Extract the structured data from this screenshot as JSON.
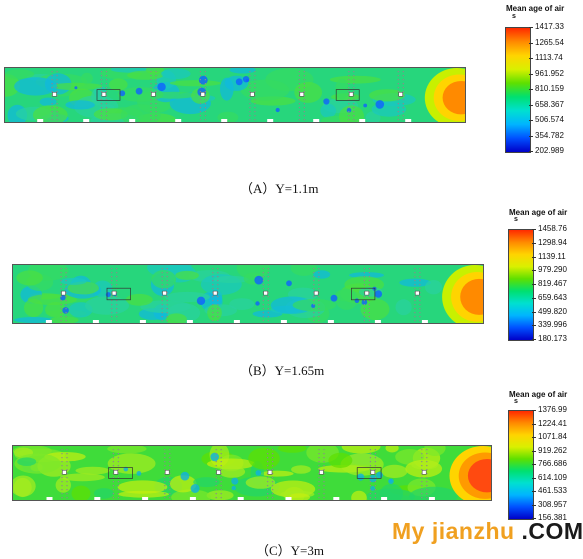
{
  "panels": [
    {
      "caption": "（A）Y=1.1m",
      "legend_title": "Mean age of air",
      "legend_unit": "s",
      "ticks": [
        "1417.33",
        "1265.54",
        "1113.74",
        "961.952",
        "810.159",
        "658.367",
        "506.574",
        "354.782",
        "202.989"
      ],
      "tone": "cool"
    },
    {
      "caption": "（B）Y=1.65m",
      "legend_title": "Mean age of air",
      "legend_unit": "s",
      "ticks": [
        "1458.76",
        "1298.94",
        "1139.11",
        "979.290",
        "819.467",
        "659.643",
        "499.820",
        "339.996",
        "180.173"
      ],
      "tone": "cool"
    },
    {
      "caption": "（C）Y=3m",
      "legend_title": "Mean age of air",
      "legend_unit": "s",
      "ticks": [
        "1376.99",
        "1224.41",
        "1071.84",
        "919.262",
        "766.686",
        "614.109",
        "461.533",
        "308.957",
        "156.381"
      ],
      "tone": "warm"
    }
  ],
  "watermark": {
    "part1": "My jianzhu",
    "part2": ".COM"
  },
  "colors": {
    "scale": [
      "#ff2a00",
      "#ff8a00",
      "#ffd400",
      "#d9f000",
      "#5ee000",
      "#00e070",
      "#00e0d0",
      "#00b4ff",
      "#0050ff",
      "#0000c8"
    ]
  }
}
